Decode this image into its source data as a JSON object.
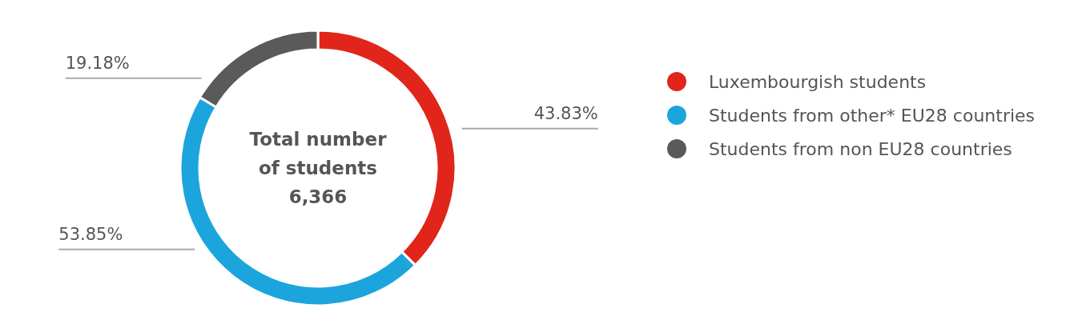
{
  "chart_data": {
    "type": "donut",
    "title": "Total number of students",
    "subtitle": "6,366",
    "categories": [
      "Luxembourgish students",
      "Students from other* EU28 countries",
      "Students from non EU28 countries"
    ],
    "values": [
      43.83,
      53.85,
      19.18
    ],
    "colors": [
      "#e1251b",
      "#1ba5dc",
      "#5a5a5a"
    ],
    "value_labels": [
      "43.83%",
      "53.85%",
      "19.18%"
    ],
    "legend": "right"
  }
}
